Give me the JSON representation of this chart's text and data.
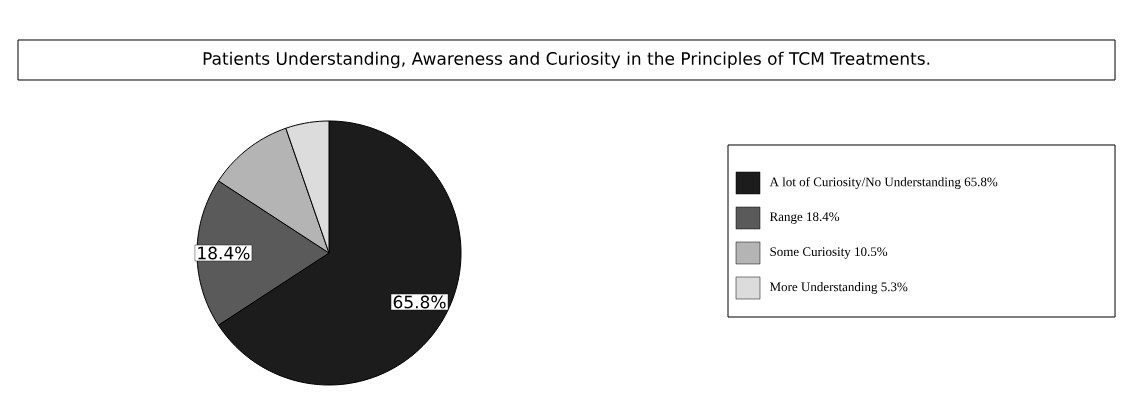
{
  "chart_data": {
    "type": "pie",
    "title": "Patients Understanding, Awareness and Curiosity in the Principles of TCM Treatments.",
    "categories": [
      "A lot of Curiosity/No Understanding  65.8%",
      "Range  18.4%",
      "Some Curiosity  10.5%",
      "More Understanding  5.3%"
    ],
    "values": [
      65.8,
      18.4,
      10.5,
      5.3
    ],
    "colors": [
      "#1c1c1c",
      "#5a5a5a",
      "#b4b4b4",
      "#dcdcdc"
    ],
    "value_labels": [
      "65.8%",
      "18.4%",
      null,
      null
    ],
    "legend": "right"
  }
}
